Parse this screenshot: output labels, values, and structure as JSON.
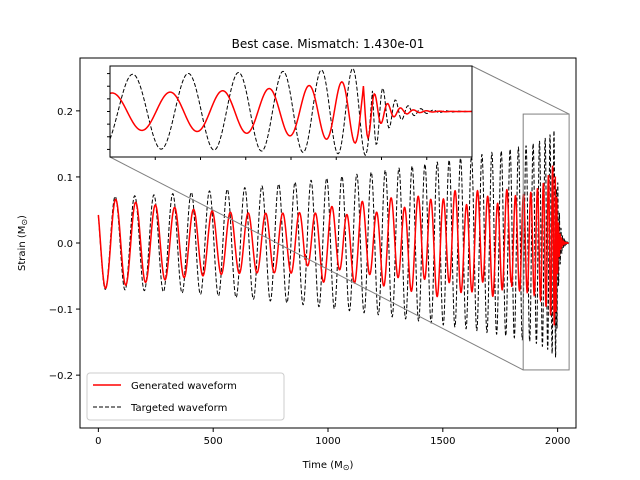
{
  "chart_data": {
    "type": "line",
    "title": "Best case. Mismatch: 1.430e-01",
    "xlabel": "Time (M",
    "ylabel": "Strain (M",
    "unit_symbol": "⊙",
    "xlim": [
      -80,
      2080
    ],
    "ylim": [
      -0.28,
      0.28
    ],
    "xticks": [
      0,
      500,
      1000,
      1500,
      2000
    ],
    "xtick_labels": [
      "0",
      "500",
      "1000",
      "1500",
      "2000"
    ],
    "yticks": [
      -0.2,
      -0.1,
      0.0,
      0.1,
      0.2
    ],
    "ytick_labels": [
      "−0.2",
      "−0.1",
      "0.0",
      "0.1",
      "0.2"
    ],
    "legend_position": "lower-left",
    "grid": false,
    "series": [
      {
        "name": "Generated waveform",
        "style": "solid",
        "color": "#ff0000",
        "description_params": {
          "amp_start": 0.07,
          "amp_min": 0.045,
          "merger_time": 1990,
          "ringdown_end": 2050,
          "peak_amp": 0.14
        }
      },
      {
        "name": "Targeted waveform",
        "style": "dashed",
        "color": "#000000",
        "description_params": {
          "amp_start": 0.07,
          "amp_max": 0.16,
          "merger_time": 1995,
          "ringdown_end": 2050,
          "peak_amp": 0.165
        }
      }
    ],
    "inset": {
      "xlim": [
        1850,
        2050
      ],
      "ylim": [
        -0.18,
        0.18
      ],
      "yticks": [
        -0.15,
        -0.1,
        -0.05,
        0.0,
        0.05,
        0.1,
        0.15
      ]
    }
  },
  "colors": {
    "generated": "#ff0000",
    "targeted": "#000000",
    "zoom_box": "#808080"
  }
}
